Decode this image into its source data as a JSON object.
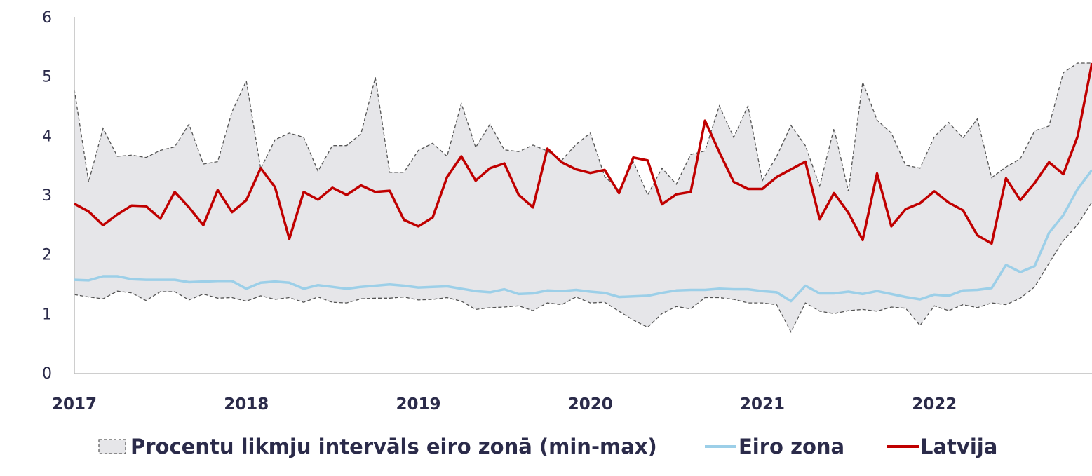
{
  "chart_data": {
    "type": "line",
    "ylim": [
      0,
      6
    ],
    "yticks": [
      "0",
      "1",
      "2",
      "3",
      "4",
      "5",
      "6"
    ],
    "x_start": "2017-01",
    "x_tick_labels": [
      "2017",
      "2018",
      "2019",
      "2020",
      "2021",
      "2022"
    ],
    "grid": false,
    "legend_placement": "bottom",
    "colors": {
      "band_fill": "#e6e6e9",
      "band_border": "#555555",
      "eiro_zona": "#9ccfe8",
      "latvija": "#c00000",
      "axis": "#bdbdbd",
      "text": "#2b2b4a"
    },
    "band": {
      "name": "Procentu likmju intervāls eiro zonā (min-max)",
      "min": [
        1.32,
        1.28,
        1.25,
        1.38,
        1.35,
        1.22,
        1.37,
        1.37,
        1.23,
        1.33,
        1.26,
        1.27,
        1.21,
        1.3,
        1.24,
        1.27,
        1.19,
        1.28,
        1.19,
        1.18,
        1.25,
        1.26,
        1.26,
        1.28,
        1.23,
        1.24,
        1.27,
        1.21,
        1.07,
        1.1,
        1.11,
        1.13,
        1.05,
        1.18,
        1.15,
        1.28,
        1.18,
        1.19,
        1.04,
        0.89,
        0.77,
        1.0,
        1.12,
        1.08,
        1.27,
        1.27,
        1.24,
        1.18,
        1.18,
        1.15,
        0.69,
        1.18,
        1.04,
        1.0,
        1.05,
        1.07,
        1.04,
        1.11,
        1.09,
        0.8,
        1.13,
        1.05,
        1.15,
        1.1,
        1.18,
        1.15,
        1.26,
        1.45,
        1.85,
        2.23,
        2.5,
        2.88
      ],
      "max": [
        4.77,
        3.22,
        4.12,
        3.65,
        3.67,
        3.63,
        3.75,
        3.81,
        4.19,
        3.52,
        3.56,
        4.4,
        4.92,
        3.44,
        3.93,
        4.04,
        3.97,
        3.4,
        3.83,
        3.83,
        4.03,
        4.98,
        3.38,
        3.38,
        3.75,
        3.87,
        3.65,
        4.54,
        3.8,
        4.19,
        3.76,
        3.73,
        3.84,
        3.74,
        3.58,
        3.85,
        4.04,
        3.31,
        3.08,
        3.56,
        3.0,
        3.45,
        3.18,
        3.68,
        3.74,
        4.5,
        3.97,
        4.5,
        3.24,
        3.65,
        4.17,
        3.83,
        3.15,
        4.12,
        3.06,
        4.9,
        4.26,
        4.04,
        3.5,
        3.45,
        3.98,
        4.22,
        3.96,
        4.28,
        3.29,
        3.47,
        3.61,
        4.08,
        4.16,
        5.06,
        5.22,
        5.22
      ]
    },
    "series": [
      {
        "name": "Eiro zona",
        "values": [
          1.57,
          1.56,
          1.63,
          1.63,
          1.58,
          1.57,
          1.57,
          1.57,
          1.53,
          1.54,
          1.55,
          1.55,
          1.42,
          1.52,
          1.54,
          1.52,
          1.42,
          1.48,
          1.45,
          1.42,
          1.45,
          1.47,
          1.49,
          1.47,
          1.44,
          1.45,
          1.46,
          1.42,
          1.38,
          1.36,
          1.41,
          1.33,
          1.34,
          1.39,
          1.38,
          1.4,
          1.37,
          1.35,
          1.28,
          1.29,
          1.3,
          1.35,
          1.39,
          1.4,
          1.4,
          1.42,
          1.41,
          1.41,
          1.38,
          1.36,
          1.21,
          1.47,
          1.34,
          1.34,
          1.37,
          1.33,
          1.38,
          1.33,
          1.28,
          1.24,
          1.32,
          1.3,
          1.39,
          1.4,
          1.43,
          1.82,
          1.7,
          1.8,
          2.36,
          2.66,
          3.1,
          3.42
        ]
      },
      {
        "name": "Latvija",
        "values": [
          2.85,
          2.72,
          2.49,
          2.67,
          2.82,
          2.81,
          2.6,
          3.05,
          2.79,
          2.49,
          3.08,
          2.71,
          2.91,
          3.45,
          3.13,
          2.26,
          3.05,
          2.92,
          3.12,
          3.0,
          3.16,
          3.05,
          3.07,
          2.58,
          2.47,
          2.62,
          3.3,
          3.65,
          3.24,
          3.45,
          3.53,
          3.0,
          2.79,
          3.78,
          3.55,
          3.43,
          3.37,
          3.42,
          3.03,
          3.63,
          3.58,
          2.84,
          3.01,
          3.05,
          4.25,
          3.72,
          3.22,
          3.1,
          3.1,
          3.3,
          3.43,
          3.56,
          2.59,
          3.03,
          2.7,
          2.24,
          3.36,
          2.47,
          2.76,
          2.86,
          3.06,
          2.87,
          2.74,
          2.32,
          2.18,
          3.28,
          2.91,
          3.2,
          3.55,
          3.35,
          3.99,
          5.22
        ]
      }
    ]
  }
}
